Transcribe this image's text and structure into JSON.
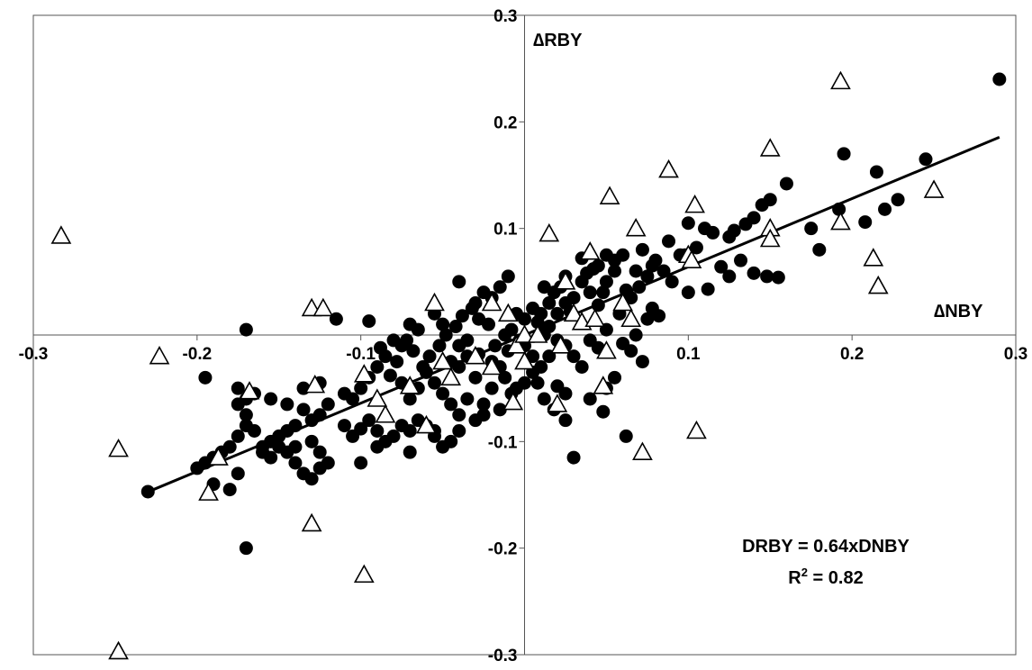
{
  "chart_data": {
    "type": "scatter",
    "title": "",
    "xlabel": "∆NBY",
    "ylabel": "∆RBY",
    "xlim": [
      -0.3,
      0.3
    ],
    "ylim": [
      -0.3,
      0.3
    ],
    "x_ticks": [
      "-0.3",
      "-0.2",
      "-0.1",
      "0",
      "0.1",
      "0.2",
      "0.3"
    ],
    "y_ticks": [
      "-0.3",
      "-0.2",
      "-0.1",
      "0",
      "0.1",
      "0.2",
      "0.3"
    ],
    "grid": false,
    "legend": "none",
    "annotation": {
      "equation": "DRBY = 0.64xDNBY",
      "r2_prefix": "R",
      "r2_sup": "2",
      "r2_value": " = 0.82"
    },
    "trendline": {
      "slope": 0.64,
      "intercept": 0.0,
      "x_range": [
        -0.23,
        0.29
      ]
    },
    "series": [
      {
        "marker": "filled-circle",
        "color": "#000000",
        "points": [
          [
            0.29,
            0.24
          ],
          [
            0.195,
            0.17
          ],
          [
            0.245,
            0.165
          ],
          [
            0.16,
            0.142
          ],
          [
            0.215,
            0.153
          ],
          [
            0.228,
            0.127
          ],
          [
            0.22,
            0.118
          ],
          [
            0.208,
            0.106
          ],
          [
            0.192,
            0.118
          ],
          [
            0.175,
            0.1
          ],
          [
            0.18,
            0.08
          ],
          [
            0.15,
            0.127
          ],
          [
            0.145,
            0.122
          ],
          [
            0.14,
            0.11
          ],
          [
            0.135,
            0.104
          ],
          [
            0.128,
            0.098
          ],
          [
            0.125,
            0.092
          ],
          [
            0.115,
            0.096
          ],
          [
            0.11,
            0.1
          ],
          [
            0.105,
            0.082
          ],
          [
            0.098,
            0.075
          ],
          [
            0.12,
            0.064
          ],
          [
            0.132,
            0.07
          ],
          [
            0.14,
            0.058
          ],
          [
            0.148,
            0.055
          ],
          [
            0.155,
            0.054
          ],
          [
            0.125,
            0.055
          ],
          [
            0.112,
            0.043
          ],
          [
            0.1,
            0.04
          ],
          [
            0.09,
            0.05
          ],
          [
            0.085,
            0.06
          ],
          [
            0.08,
            0.07
          ],
          [
            0.075,
            0.055
          ],
          [
            0.07,
            0.045
          ],
          [
            0.065,
            0.035
          ],
          [
            0.06,
            0.075
          ],
          [
            0.055,
            0.06
          ],
          [
            0.05,
            0.05
          ],
          [
            0.1,
            0.105
          ],
          [
            0.095,
            0.075
          ],
          [
            0.088,
            0.088
          ],
          [
            0.078,
            0.065
          ],
          [
            0.072,
            0.08
          ],
          [
            0.068,
            0.06
          ],
          [
            0.062,
            0.042
          ],
          [
            0.058,
            0.02
          ],
          [
            0.048,
            0.04
          ],
          [
            0.045,
            0.028
          ],
          [
            0.04,
            0.04
          ],
          [
            0.035,
            0.05
          ],
          [
            0.03,
            0.035
          ],
          [
            0.028,
            0.022
          ],
          [
            0.025,
            0.03
          ],
          [
            0.02,
            0.02
          ],
          [
            0.015,
            0.03
          ],
          [
            0.012,
            0.045
          ],
          [
            0.01,
            0.02
          ],
          [
            0.008,
            0.012
          ],
          [
            0.005,
            0.025
          ],
          [
            0.0,
            0.015
          ],
          [
            -0.005,
            0.02
          ],
          [
            -0.008,
            0.005
          ],
          [
            0.042,
            0.062
          ],
          [
            0.05,
            0.075
          ],
          [
            0.055,
            0.07
          ],
          [
            0.045,
            0.065
          ],
          [
            0.038,
            0.058
          ],
          [
            0.035,
            0.072
          ],
          [
            0.025,
            0.055
          ],
          [
            0.022,
            0.045
          ],
          [
            0.018,
            0.04
          ],
          [
            0.015,
            0.008
          ],
          [
            0.02,
            -0.005
          ],
          [
            0.025,
            -0.01
          ],
          [
            0.03,
            -0.02
          ],
          [
            0.035,
            -0.03
          ],
          [
            0.04,
            -0.005
          ],
          [
            0.045,
            -0.012
          ],
          [
            0.05,
            0.005
          ],
          [
            0.06,
            -0.008
          ],
          [
            0.068,
            0.0
          ],
          [
            0.075,
            0.015
          ],
          [
            0.078,
            0.025
          ],
          [
            0.082,
            0.018
          ],
          [
            0.065,
            -0.015
          ],
          [
            0.072,
            -0.025
          ],
          [
            0.055,
            -0.04
          ],
          [
            0.04,
            -0.06
          ],
          [
            0.025,
            -0.055
          ],
          [
            0.02,
            -0.048
          ],
          [
            0.01,
            -0.03
          ],
          [
            0.005,
            -0.02
          ],
          [
            0.0,
            -0.01
          ],
          [
            -0.01,
            -0.015
          ],
          [
            -0.015,
            -0.03
          ],
          [
            -0.02,
            -0.05
          ],
          [
            -0.025,
            -0.065
          ],
          [
            -0.03,
            -0.04
          ],
          [
            -0.035,
            -0.02
          ],
          [
            -0.04,
            -0.03
          ],
          [
            0.03,
            -0.115
          ],
          [
            0.025,
            -0.08
          ],
          [
            0.05,
            -0.05
          ],
          [
            0.015,
            -0.02
          ],
          [
            0.012,
            0.0
          ],
          [
            -0.003,
            -0.005
          ],
          [
            -0.012,
            0.0
          ],
          [
            -0.018,
            -0.01
          ],
          [
            -0.022,
            0.01
          ],
          [
            -0.028,
            0.015
          ],
          [
            -0.032,
            0.025
          ],
          [
            -0.038,
            0.018
          ],
          [
            -0.042,
            0.008
          ],
          [
            -0.048,
            0.0
          ],
          [
            -0.052,
            -0.01
          ],
          [
            -0.058,
            -0.02
          ],
          [
            -0.062,
            -0.03
          ],
          [
            -0.068,
            -0.015
          ],
          [
            -0.072,
            -0.005
          ],
          [
            -0.078,
            -0.025
          ],
          [
            -0.015,
            0.045
          ],
          [
            -0.01,
            0.055
          ],
          [
            -0.02,
            0.035
          ],
          [
            -0.025,
            0.04
          ],
          [
            -0.03,
            0.03
          ],
          [
            -0.04,
            0.05
          ],
          [
            -0.05,
            0.01
          ],
          [
            -0.055,
            0.02
          ],
          [
            -0.065,
            0.005
          ],
          [
            -0.07,
            0.01
          ],
          [
            -0.075,
            -0.01
          ],
          [
            -0.08,
            -0.005
          ],
          [
            -0.085,
            -0.02
          ],
          [
            -0.09,
            -0.03
          ],
          [
            -0.095,
            -0.04
          ],
          [
            -0.1,
            -0.05
          ],
          [
            -0.105,
            -0.06
          ],
          [
            -0.11,
            -0.055
          ],
          [
            -0.115,
            0.015
          ],
          [
            -0.095,
            0.013
          ],
          [
            -0.088,
            -0.012
          ],
          [
            -0.082,
            -0.038
          ],
          [
            -0.075,
            -0.045
          ],
          [
            -0.07,
            -0.06
          ],
          [
            -0.065,
            -0.05
          ],
          [
            -0.06,
            -0.035
          ],
          [
            -0.055,
            -0.045
          ],
          [
            -0.05,
            -0.055
          ],
          [
            -0.045,
            -0.065
          ],
          [
            -0.04,
            -0.075
          ],
          [
            -0.035,
            -0.06
          ],
          [
            -0.03,
            -0.08
          ],
          [
            -0.025,
            -0.075
          ],
          [
            -0.015,
            -0.07
          ],
          [
            -0.008,
            -0.055
          ],
          [
            0.0,
            -0.045
          ],
          [
            0.005,
            -0.035
          ],
          [
            -0.12,
            -0.065
          ],
          [
            -0.125,
            -0.075
          ],
          [
            -0.13,
            -0.08
          ],
          [
            -0.135,
            -0.07
          ],
          [
            -0.14,
            -0.085
          ],
          [
            -0.145,
            -0.09
          ],
          [
            -0.15,
            -0.095
          ],
          [
            -0.155,
            -0.1
          ],
          [
            -0.16,
            -0.11
          ],
          [
            -0.165,
            -0.09
          ],
          [
            -0.17,
            -0.085
          ],
          [
            -0.175,
            -0.095
          ],
          [
            -0.18,
            -0.105
          ],
          [
            -0.185,
            -0.11
          ],
          [
            -0.19,
            -0.115
          ],
          [
            -0.195,
            -0.12
          ],
          [
            -0.2,
            -0.125
          ],
          [
            -0.11,
            -0.085
          ],
          [
            -0.105,
            -0.095
          ],
          [
            -0.1,
            -0.088
          ],
          [
            -0.095,
            -0.08
          ],
          [
            -0.09,
            -0.09
          ],
          [
            -0.085,
            -0.1
          ],
          [
            -0.08,
            -0.095
          ],
          [
            -0.075,
            -0.085
          ],
          [
            -0.07,
            -0.09
          ],
          [
            -0.065,
            -0.08
          ],
          [
            -0.06,
            -0.085
          ],
          [
            -0.055,
            -0.095
          ],
          [
            -0.05,
            -0.105
          ],
          [
            -0.045,
            -0.1
          ],
          [
            -0.04,
            -0.09
          ],
          [
            -0.13,
            -0.1
          ],
          [
            -0.125,
            -0.11
          ],
          [
            -0.12,
            -0.12
          ],
          [
            -0.135,
            -0.13
          ],
          [
            -0.14,
            -0.12
          ],
          [
            -0.145,
            -0.11
          ],
          [
            -0.15,
            -0.105
          ],
          [
            -0.155,
            -0.115
          ],
          [
            -0.16,
            -0.105
          ],
          [
            -0.17,
            -0.075
          ],
          [
            -0.175,
            -0.065
          ],
          [
            -0.165,
            -0.055
          ],
          [
            -0.155,
            -0.06
          ],
          [
            -0.145,
            -0.065
          ],
          [
            -0.135,
            -0.05
          ],
          [
            -0.125,
            -0.045
          ],
          [
            -0.23,
            -0.147
          ],
          [
            -0.19,
            -0.14
          ],
          [
            -0.175,
            -0.13
          ],
          [
            -0.18,
            -0.145
          ],
          [
            -0.17,
            -0.2
          ],
          [
            -0.195,
            -0.04
          ],
          [
            -0.175,
            -0.05
          ],
          [
            -0.17,
            -0.06
          ],
          [
            -0.14,
            -0.105
          ],
          [
            -0.125,
            -0.125
          ],
          [
            -0.13,
            -0.135
          ],
          [
            -0.1,
            -0.12
          ],
          [
            -0.09,
            -0.105
          ],
          [
            -0.07,
            -0.11
          ],
          [
            -0.055,
            -0.09
          ],
          [
            -0.17,
            0.005
          ],
          [
            -0.045,
            -0.025
          ],
          [
            -0.04,
            -0.01
          ],
          [
            -0.035,
            -0.005
          ],
          [
            -0.028,
            -0.018
          ],
          [
            -0.02,
            -0.025
          ],
          [
            -0.012,
            -0.04
          ],
          [
            -0.005,
            -0.05
          ],
          [
            0.008,
            -0.045
          ],
          [
            0.012,
            -0.06
          ],
          [
            0.018,
            -0.07
          ],
          [
            0.062,
            -0.095
          ],
          [
            0.048,
            -0.072
          ]
        ]
      },
      {
        "marker": "open-triangle",
        "color": "#000000",
        "points": [
          [
            -0.283,
            0.093
          ],
          [
            -0.223,
            -0.02
          ],
          [
            -0.248,
            -0.107
          ],
          [
            -0.248,
            -0.297
          ],
          [
            -0.193,
            -0.148
          ],
          [
            -0.187,
            -0.115
          ],
          [
            -0.168,
            -0.053
          ],
          [
            -0.13,
            0.025
          ],
          [
            -0.123,
            0.025
          ],
          [
            -0.128,
            -0.047
          ],
          [
            -0.13,
            -0.177
          ],
          [
            -0.098,
            -0.225
          ],
          [
            -0.098,
            -0.037
          ],
          [
            -0.09,
            -0.06
          ],
          [
            -0.085,
            -0.075
          ],
          [
            -0.07,
            -0.048
          ],
          [
            -0.06,
            -0.085
          ],
          [
            -0.055,
            0.03
          ],
          [
            -0.05,
            -0.025
          ],
          [
            -0.045,
            -0.04
          ],
          [
            -0.03,
            -0.02
          ],
          [
            -0.02,
            -0.03
          ],
          [
            -0.02,
            0.03
          ],
          [
            -0.01,
            0.02
          ],
          [
            -0.005,
            -0.01
          ],
          [
            0.0,
            -0.025
          ],
          [
            -0.007,
            -0.063
          ],
          [
            0.0,
            0.0
          ],
          [
            0.008,
            0.0
          ],
          [
            0.015,
            0.095
          ],
          [
            0.02,
            -0.065
          ],
          [
            0.022,
            -0.01
          ],
          [
            0.025,
            0.05
          ],
          [
            0.03,
            0.02
          ],
          [
            0.035,
            0.012
          ],
          [
            0.04,
            0.078
          ],
          [
            0.043,
            0.015
          ],
          [
            0.048,
            -0.048
          ],
          [
            0.05,
            -0.015
          ],
          [
            0.052,
            0.13
          ],
          [
            0.06,
            0.03
          ],
          [
            0.065,
            0.015
          ],
          [
            0.068,
            0.1
          ],
          [
            0.072,
            -0.11
          ],
          [
            0.088,
            0.155
          ],
          [
            0.1,
            0.075
          ],
          [
            0.102,
            0.07
          ],
          [
            0.104,
            0.122
          ],
          [
            0.105,
            -0.09
          ],
          [
            0.15,
            0.175
          ],
          [
            0.15,
            0.1
          ],
          [
            0.15,
            0.09
          ],
          [
            0.193,
            0.238
          ],
          [
            0.193,
            0.106
          ],
          [
            0.213,
            0.072
          ],
          [
            0.216,
            0.046
          ],
          [
            0.25,
            0.136
          ]
        ]
      }
    ]
  }
}
